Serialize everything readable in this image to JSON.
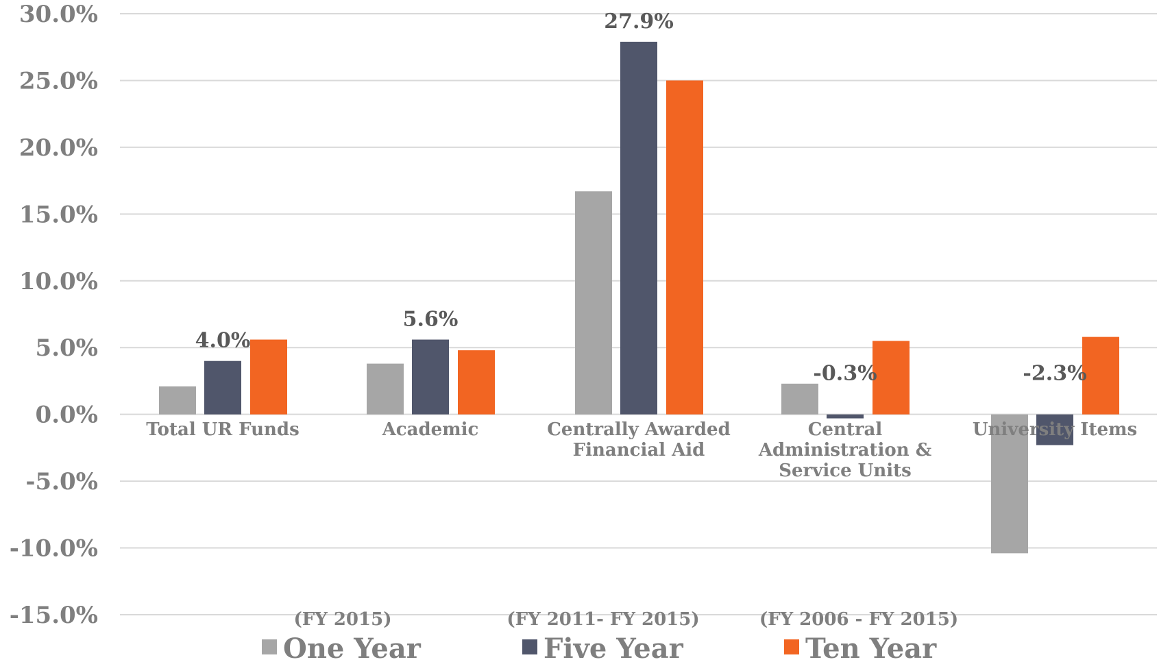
{
  "chart_data": {
    "type": "bar",
    "title": "",
    "xlabel": "",
    "ylabel": "",
    "ylim": [
      -15,
      30
    ],
    "y_ticks": [
      "30.0%",
      "25.0%",
      "20.0%",
      "15.0%",
      "10.0%",
      "5.0%",
      "0.0%",
      "-5.0%",
      "-10.0%",
      "-15.0%"
    ],
    "grid": true,
    "legend_position": "bottom",
    "categories": [
      [
        "Total UR Funds"
      ],
      [
        "Academic"
      ],
      [
        "Centrally  Awarded",
        "Financial Aid"
      ],
      [
        "Central",
        "Administration &",
        "Service Units"
      ],
      [
        "University Items"
      ]
    ],
    "series": [
      {
        "name": "One Year",
        "color": "#a6a6a6",
        "values": [
          2.1,
          3.8,
          16.7,
          2.3,
          -10.4
        ]
      },
      {
        "name": "Five Year",
        "color": "#50566b",
        "values": [
          4.0,
          5.6,
          27.9,
          -0.3,
          -2.3
        ]
      },
      {
        "name": "Ten Year",
        "color": "#f26522",
        "values": [
          5.6,
          4.8,
          25.0,
          5.5,
          5.8
        ]
      }
    ],
    "data_labels": [
      {
        "series": 1,
        "category": 0,
        "text": "4.0%"
      },
      {
        "series": 1,
        "category": 1,
        "text": "5.6%"
      },
      {
        "series": 1,
        "category": 2,
        "text": "27.9%"
      },
      {
        "series": 1,
        "category": 3,
        "text": "-0.3%"
      },
      {
        "series": 1,
        "category": 4,
        "text": "-2.3%"
      }
    ],
    "period_labels": [
      "(FY 2015)",
      "(FY 2011- FY 2015)",
      "(FY 2006 - FY 2015)"
    ],
    "grid_color": "#d9d9d9",
    "axis_text_color": "#7f7f7f",
    "label_text_color": "#595959"
  }
}
